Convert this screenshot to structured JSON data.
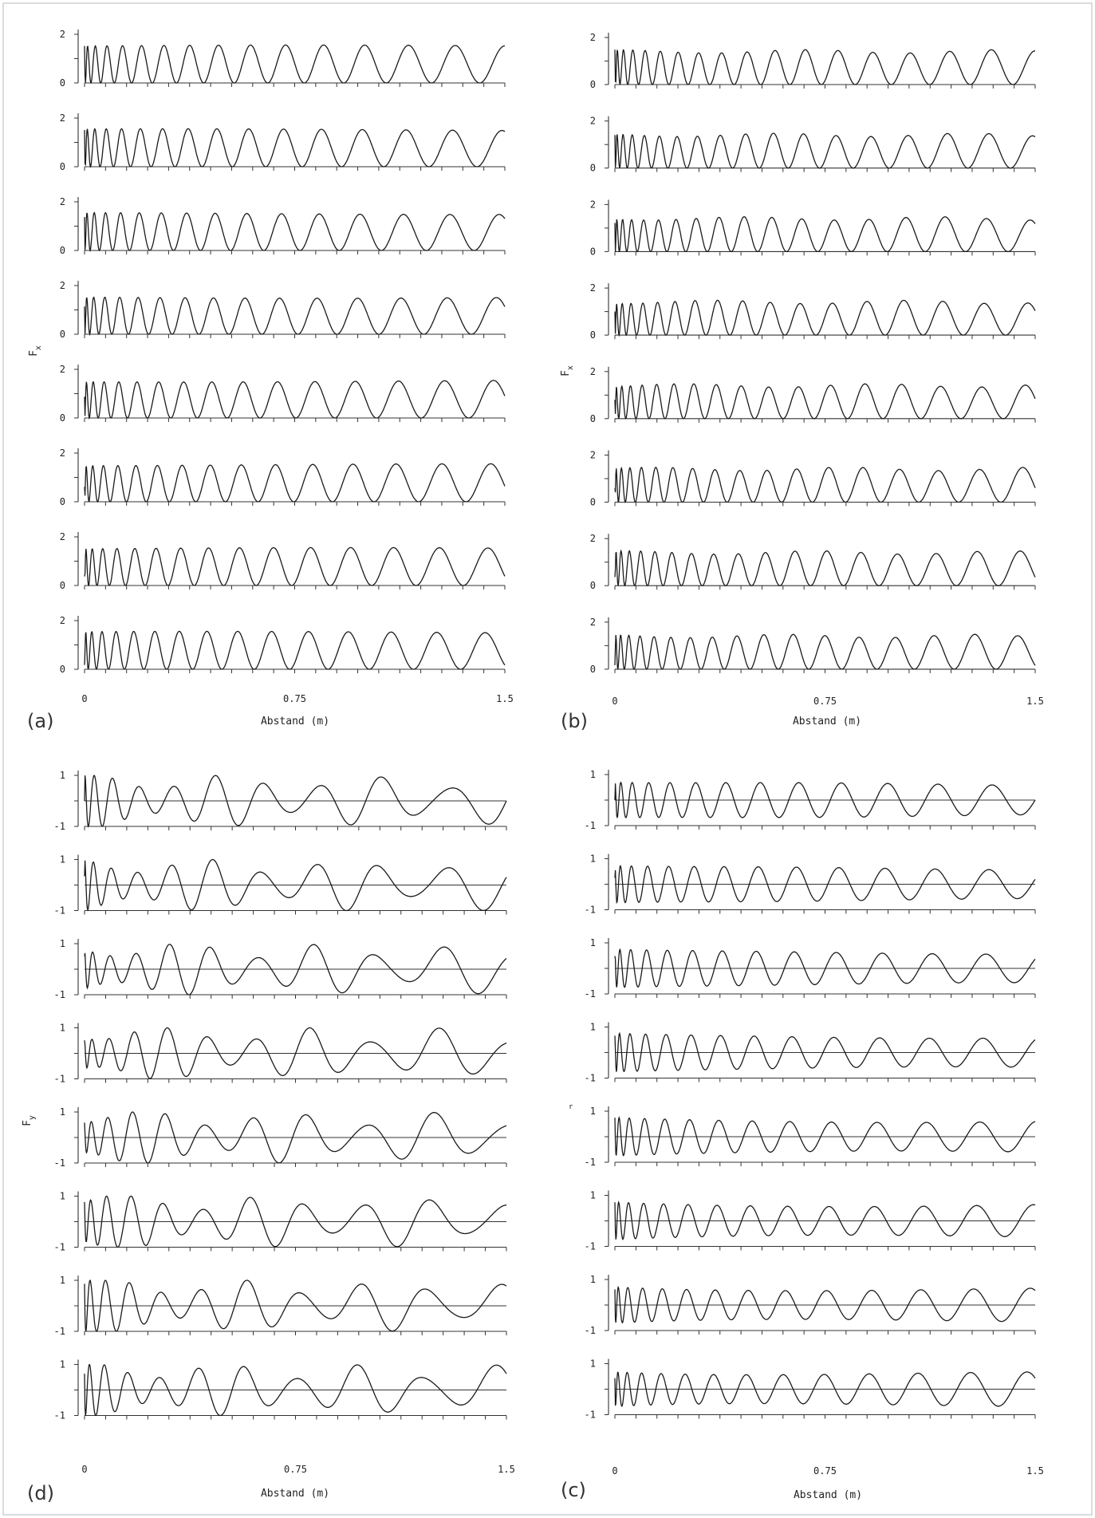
{
  "chart_data": [
    {
      "panel": "a",
      "type": "line",
      "panel_label": "(a)",
      "xlabel": "Abstand (m)",
      "ylabel": "Fx",
      "ylabel_main": "F",
      "ylabel_sub": "x",
      "xlim": [
        0,
        1.5
      ],
      "x_tick_labels": [
        "0",
        "0.75",
        "1.5"
      ],
      "ylim": [
        0,
        2
      ],
      "y_tick_labels": [
        "0",
        "2"
      ],
      "n_traces": 8,
      "waveform": "rectified-cosine oscillation; frequency decreasing with distance",
      "amplitude_approx": 1.5,
      "cycles_approx": 15,
      "color": "#1a1a1a"
    },
    {
      "panel": "b",
      "type": "line",
      "panel_label": "(b)",
      "xlabel": "Abstand (m)",
      "ylabel": "Fx",
      "ylabel_main": "F",
      "ylabel_sub": "x",
      "xlim": [
        0,
        1.5
      ],
      "x_tick_labels": [
        "0",
        "0.75",
        "1.5"
      ],
      "ylim": [
        0,
        2
      ],
      "y_tick_labels": [
        "0",
        "2"
      ],
      "n_traces": 8,
      "waveform": "rectified-cosine oscillation with beating amplitude; frequency decreasing with distance",
      "amplitude_approx": 1.5,
      "cycles_approx": 17,
      "color": "#1a1a1a"
    },
    {
      "panel": "d",
      "type": "line",
      "panel_label": "(d)",
      "xlabel": "Abstand (m)",
      "ylabel": "Fy",
      "ylabel_main": "F",
      "ylabel_sub": "y",
      "xlim": [
        0,
        1.5
      ],
      "x_tick_labels": [
        "0",
        "0.75",
        "1.5"
      ],
      "ylim": [
        -1,
        1
      ],
      "y_tick_labels": [
        "1",
        "-1"
      ],
      "n_traces": 8,
      "waveform": "oscillation about zero with strongly modulated (beating) amplitude; frequency decreasing with distance",
      "amplitude_approx": 0.95,
      "cycles_approx": 10,
      "color": "#1a1a1a"
    },
    {
      "panel": "c",
      "type": "line",
      "panel_label": "(c)",
      "xlabel": "Abstand (m)",
      "ylabel": "",
      "ylabel_main": "",
      "ylabel_sub": "",
      "ylabel_tiny": "r",
      "xlim": [
        0,
        1.5
      ],
      "x_tick_labels": [
        "0",
        "0.75",
        "1.5"
      ],
      "ylim": [
        -1,
        1
      ],
      "y_tick_labels": [
        "1",
        "-1"
      ],
      "n_traces": 8,
      "waveform": "regular oscillation about zero with near-constant amplitude; frequency decreasing with distance",
      "amplitude_approx": 0.65,
      "cycles_approx": 13,
      "color": "#1a1a1a"
    }
  ]
}
